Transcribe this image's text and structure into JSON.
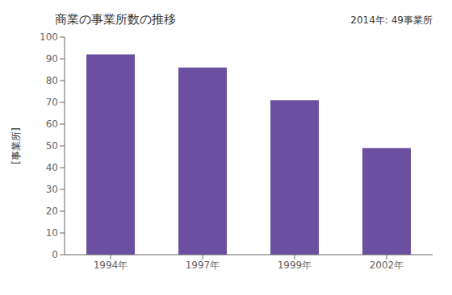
{
  "chart_data": {
    "type": "bar",
    "title": "商業の事業所数の推移",
    "ylabel": "[事業所]",
    "annotation": "2014年: 49事業所",
    "categories": [
      "1994年",
      "1997年",
      "1999年",
      "2002年"
    ],
    "values": [
      92,
      86,
      71,
      49
    ],
    "color": "#6B4FA0",
    "ylim": [
      0,
      100
    ],
    "yticks": [
      0,
      10,
      20,
      30,
      40,
      50,
      60,
      70,
      80,
      90,
      100
    ],
    "grid": false
  }
}
